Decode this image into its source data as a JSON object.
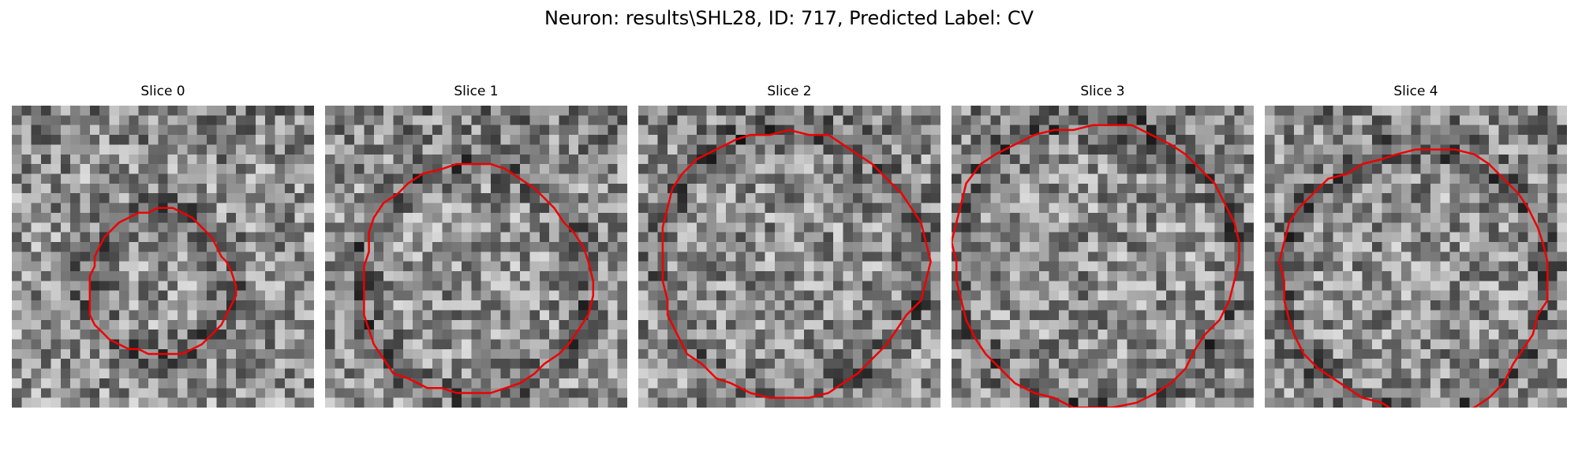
{
  "figure": {
    "title": "Neuron: results\\SHL28, ID: 717, Predicted Label: CV",
    "contour_color": "#ee0000"
  },
  "slices": [
    {
      "title": "Slice 0",
      "contour_radius": 0.24,
      "contour_center": [
        0.49,
        0.59
      ]
    },
    {
      "title": "Slice 1",
      "contour_radius": 0.38,
      "contour_center": [
        0.49,
        0.58
      ]
    },
    {
      "title": "Slice 2",
      "contour_radius": 0.44,
      "contour_center": [
        0.5,
        0.52
      ]
    },
    {
      "title": "Slice 3",
      "contour_radius": 0.47,
      "contour_center": [
        0.47,
        0.52
      ]
    },
    {
      "title": "Slice 4",
      "contour_radius": 0.44,
      "contour_center": [
        0.5,
        0.58
      ]
    }
  ]
}
